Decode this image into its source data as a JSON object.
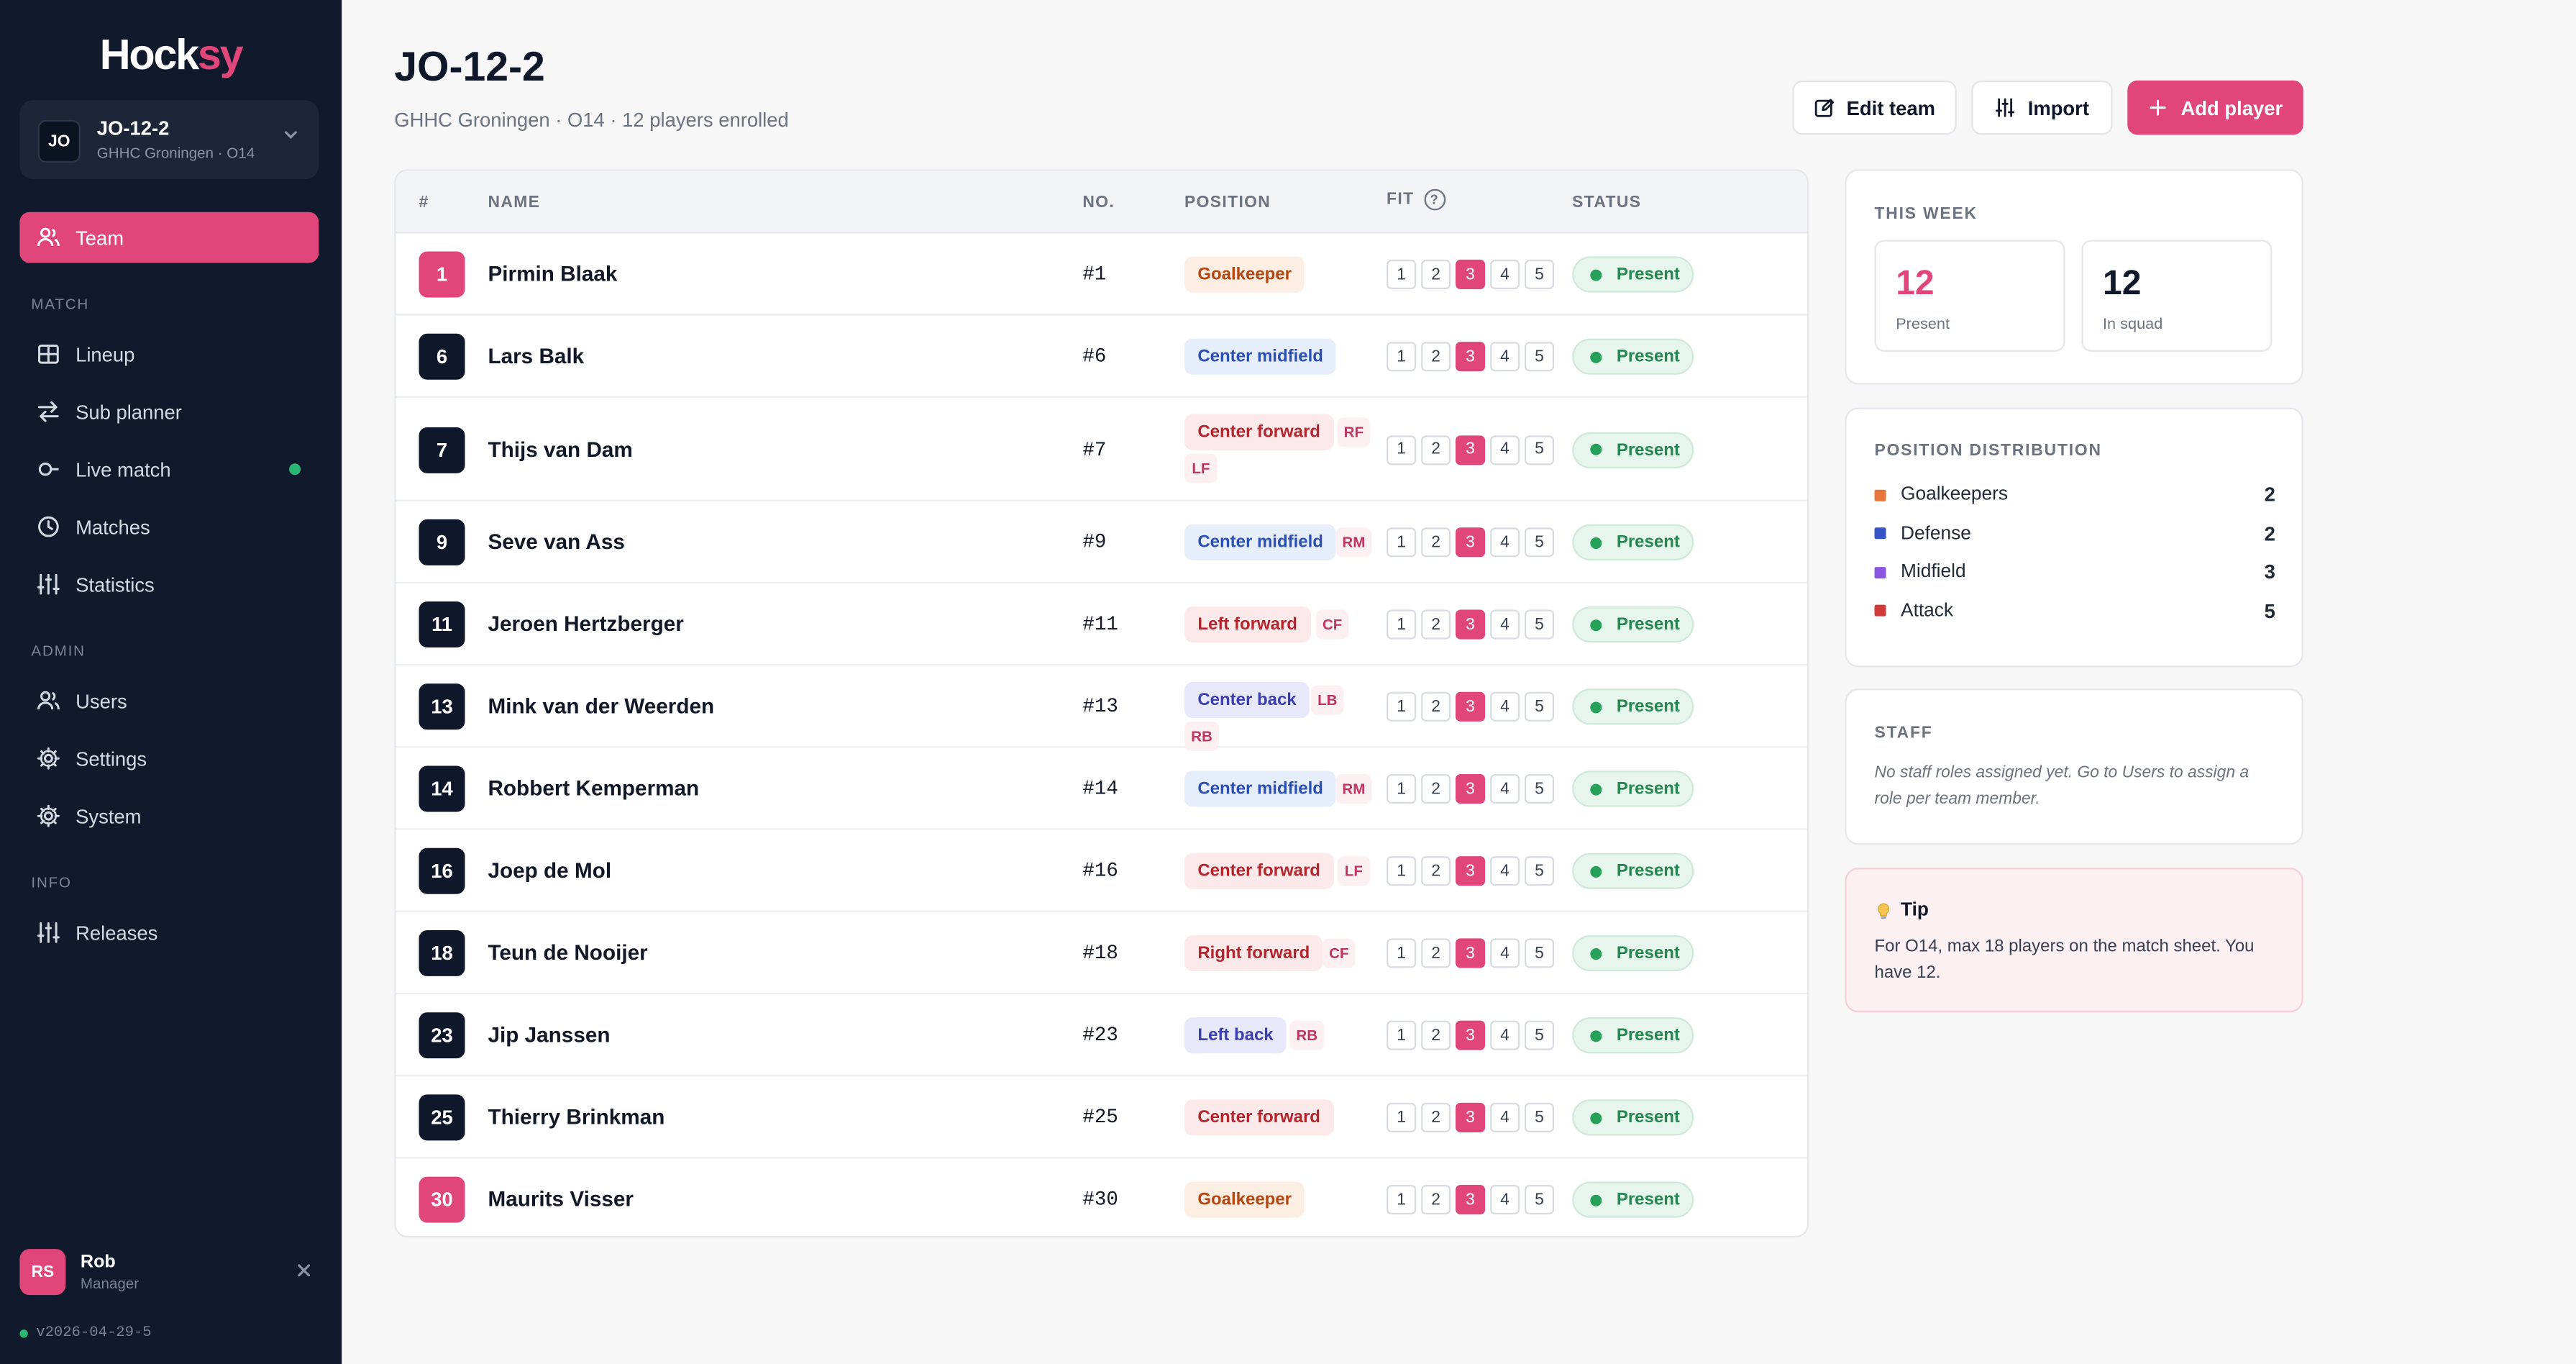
{
  "sidebar": {
    "logo": {
      "part1": "Hock",
      "part2": "sy"
    },
    "team_switch": {
      "badge": "JO",
      "name": "JO-12-2",
      "sub": "GHHC Groningen · O14"
    },
    "nav": {
      "team": "Team",
      "match_section": "MATCH",
      "lineup": "Lineup",
      "sub_planner": "Sub planner",
      "live_match": "Live match",
      "matches": "Matches",
      "statistics": "Statistics",
      "admin_section": "ADMIN",
      "users": "Users",
      "settings": "Settings",
      "system": "System",
      "info_section": "INFO",
      "releases": "Releases"
    },
    "user": {
      "initials": "RS",
      "name": "Rob",
      "role": "Manager"
    },
    "version": "v2026-04-29-5"
  },
  "header": {
    "title": "JO-12-2",
    "subtitle": "GHHC Groningen · O14 · 12 players enrolled",
    "edit_label": "Edit team",
    "import_label": "Import",
    "add_label": "Add player"
  },
  "table": {
    "headers": {
      "hash": "#",
      "name": "NAME",
      "no": "NO.",
      "position": "POSITION",
      "fit": "FIT",
      "status": "STATUS"
    },
    "fit_scale": [
      "1",
      "2",
      "3",
      "4",
      "5"
    ],
    "rows": [
      {
        "num": "1",
        "name": "Pirmin Blaak",
        "no": "#1",
        "position": "Goalkeeper",
        "alts": [],
        "fit": 3,
        "status": "Present"
      },
      {
        "num": "6",
        "name": "Lars Balk",
        "no": "#6",
        "position": "Center midfield",
        "alts": [],
        "fit": 3,
        "status": "Present"
      },
      {
        "num": "7",
        "name": "Thijs van Dam",
        "no": "#7",
        "position": "Center forward",
        "alts": [
          "RF",
          "LF"
        ],
        "fit": 3,
        "status": "Present"
      },
      {
        "num": "9",
        "name": "Seve van Ass",
        "no": "#9",
        "position": "Center midfield",
        "alts": [
          "RM"
        ],
        "fit": 3,
        "status": "Present"
      },
      {
        "num": "11",
        "name": "Jeroen Hertzberger",
        "no": "#11",
        "position": "Left forward",
        "alts": [
          "CF"
        ],
        "fit": 3,
        "status": "Present"
      },
      {
        "num": "13",
        "name": "Mink van der Weerden",
        "no": "#13",
        "position": "Center back",
        "alts": [
          "LB",
          "RB"
        ],
        "fit": 3,
        "status": "Present"
      },
      {
        "num": "14",
        "name": "Robbert Kemperman",
        "no": "#14",
        "position": "Center midfield",
        "alts": [
          "RM"
        ],
        "fit": 3,
        "status": "Present"
      },
      {
        "num": "16",
        "name": "Joep de Mol",
        "no": "#16",
        "position": "Center forward",
        "alts": [
          "LF"
        ],
        "fit": 3,
        "status": "Present"
      },
      {
        "num": "18",
        "name": "Teun de Nooijer",
        "no": "#18",
        "position": "Right forward",
        "alts": [
          "CF"
        ],
        "fit": 3,
        "status": "Present"
      },
      {
        "num": "23",
        "name": "Jip Janssen",
        "no": "#23",
        "position": "Left back",
        "alts": [
          "RB"
        ],
        "fit": 3,
        "status": "Present"
      },
      {
        "num": "25",
        "name": "Thierry Brinkman",
        "no": "#25",
        "position": "Center forward",
        "alts": [],
        "fit": 3,
        "status": "Present"
      },
      {
        "num": "30",
        "name": "Maurits Visser",
        "no": "#30",
        "position": "Goalkeeper",
        "alts": [],
        "fit": 3,
        "status": "Present"
      }
    ]
  },
  "this_week": {
    "title": "THIS WEEK",
    "present_value": "12",
    "present_label": "Present",
    "squad_value": "12",
    "squad_label": "In squad"
  },
  "distribution": {
    "title": "POSITION DISTRIBUTION",
    "items": [
      {
        "label": "Goalkeepers",
        "count": "2",
        "color": "#e8763a"
      },
      {
        "label": "Defense",
        "count": "2",
        "color": "#3553c9"
      },
      {
        "label": "Midfield",
        "count": "3",
        "color": "#8a55e0"
      },
      {
        "label": "Attack",
        "count": "5",
        "color": "#d23a3a"
      }
    ]
  },
  "staff": {
    "title": "STAFF",
    "text": "No staff roles assigned yet. Go to Users to assign a role per team member."
  },
  "tip": {
    "title": "Tip",
    "text": "For O14, max 18 players on the match sheet. You have 12."
  },
  "colors": {
    "accent": "#e0467a",
    "sidebar": "#101a2c",
    "present": "#27a05a"
  }
}
